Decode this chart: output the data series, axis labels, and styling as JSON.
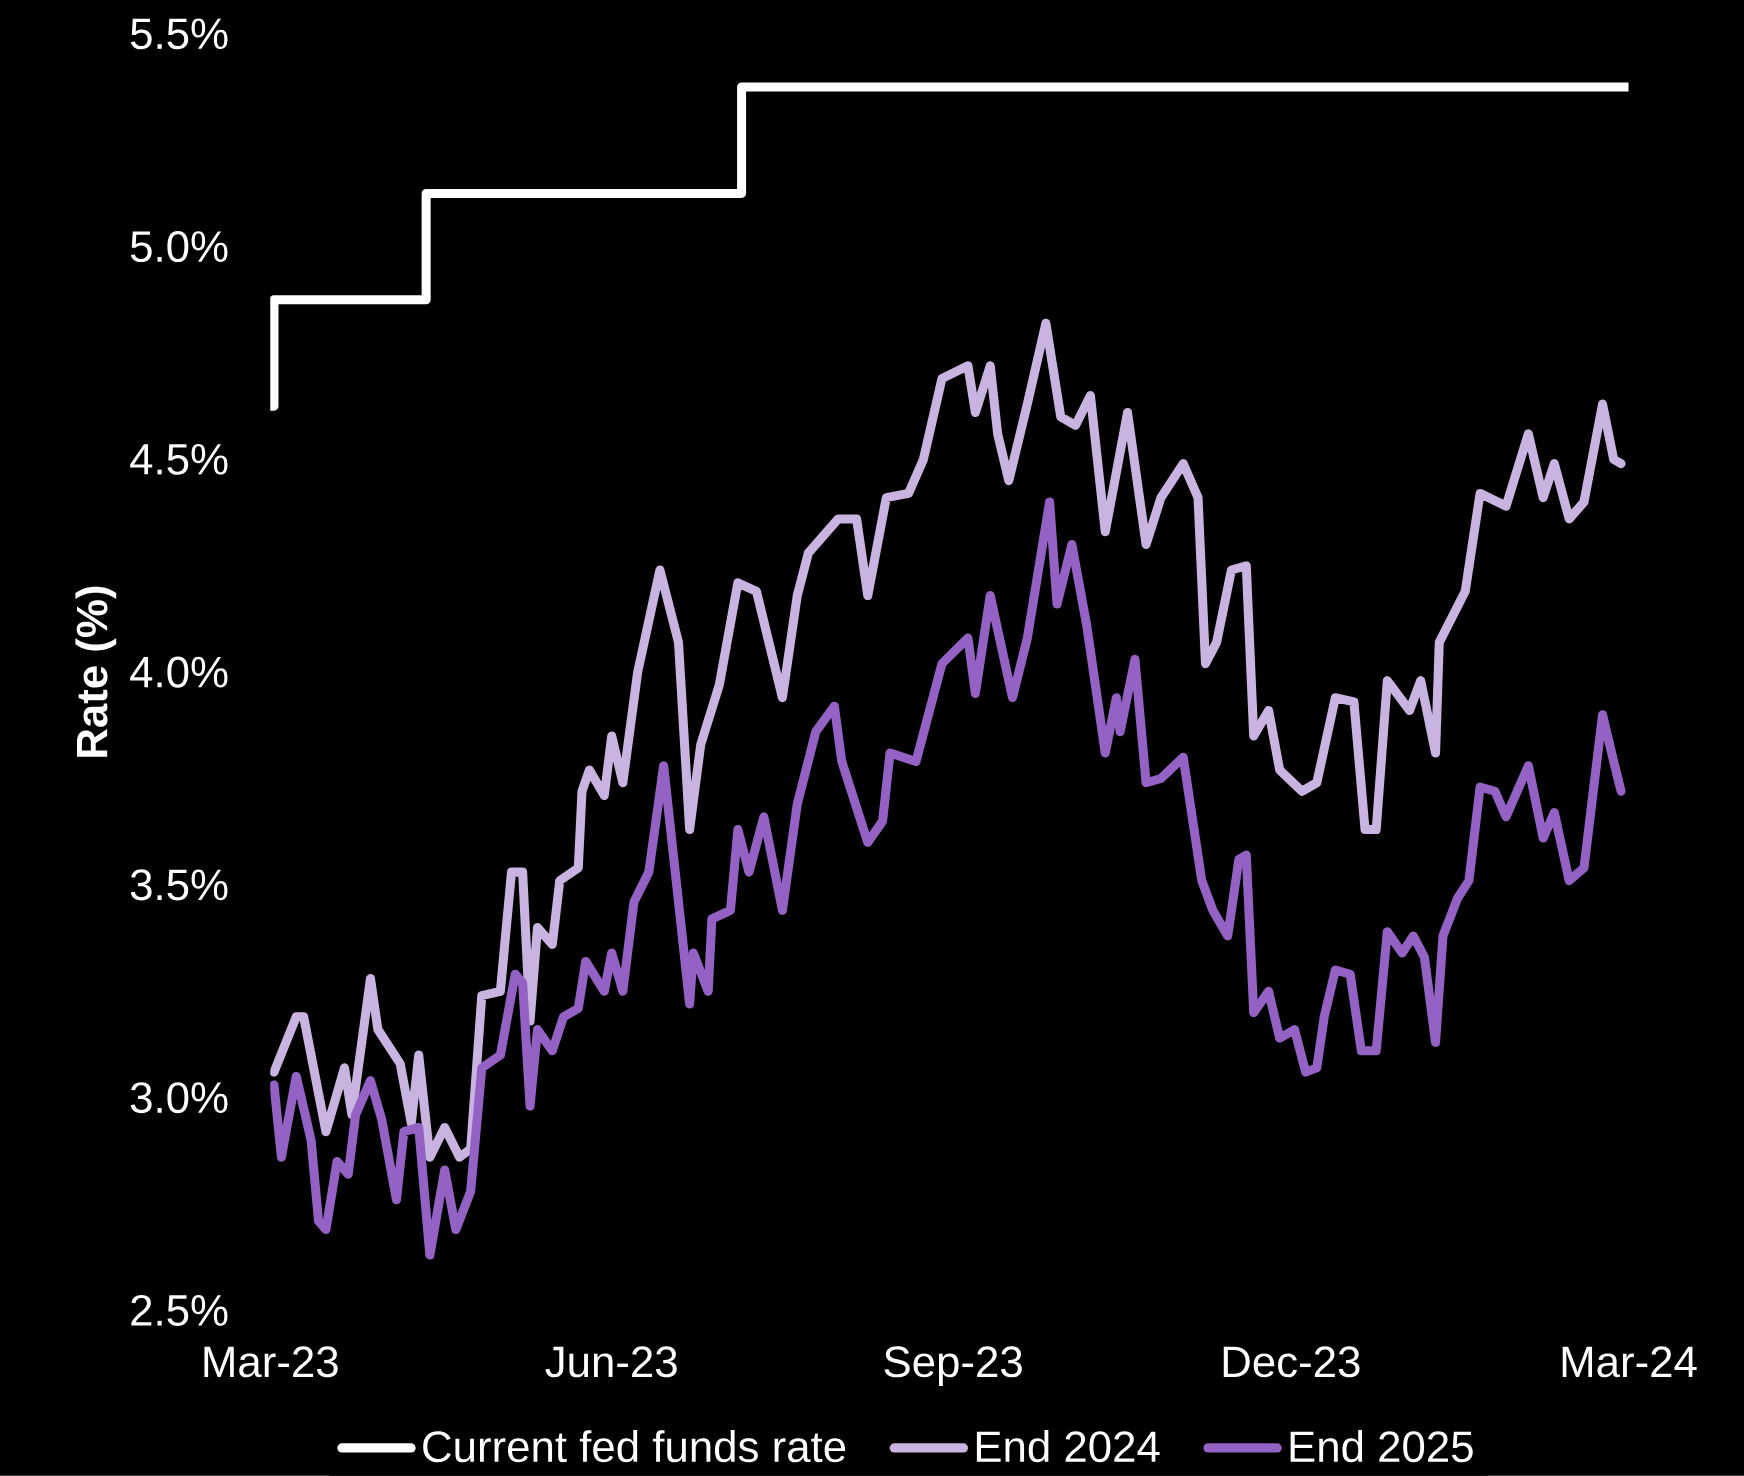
{
  "chart_data": {
    "type": "line",
    "ylabel": "Rate (%)",
    "legend": "bottom",
    "xlim": [
      "2023-03-01",
      "2024-03-01"
    ],
    "xticks": [
      {
        "value": "2023-03-01",
        "label": "Mar-23"
      },
      {
        "value": "2023-06-01",
        "label": "Jun-23"
      },
      {
        "value": "2023-09-01",
        "label": "Sep-23"
      },
      {
        "value": "2023-12-01",
        "label": "Dec-23"
      },
      {
        "value": "2024-03-01",
        "label": "Mar-24"
      }
    ],
    "ylim": [
      2.5,
      5.5
    ],
    "yticks": [
      {
        "value": 2.5,
        "label": "2.5%"
      },
      {
        "value": 3.0,
        "label": "3.0%"
      },
      {
        "value": 3.5,
        "label": "3.5%"
      },
      {
        "value": 4.0,
        "label": "4.0%"
      },
      {
        "value": 4.5,
        "label": "4.5%"
      },
      {
        "value": 5.0,
        "label": "5.0%"
      },
      {
        "value": 5.5,
        "label": "5.5%"
      }
    ],
    "series": [
      {
        "name": "Current fed funds rate",
        "type": "step",
        "color": "#ffffff",
        "x": [
          "2023-03-01",
          "2023-03-02",
          "2023-04-12",
          "2023-07-06",
          "2024-03-01"
        ],
        "values": [
          4.625,
          4.875,
          5.125,
          5.375,
          5.375
        ]
      },
      {
        "name": "End 2024",
        "color": "#c9b3e0",
        "x": [
          "2023-03-02",
          "2023-03-08",
          "2023-03-10",
          "2023-03-16",
          "2023-03-21",
          "2023-03-23",
          "2023-03-28",
          "2023-03-30",
          "2023-04-05",
          "2023-04-08",
          "2023-04-10",
          "2023-04-13",
          "2023-04-17",
          "2023-04-21",
          "2023-04-24",
          "2023-04-27",
          "2023-05-02",
          "2023-05-05",
          "2023-05-08",
          "2023-05-10",
          "2023-05-12",
          "2023-05-16",
          "2023-05-18",
          "2023-05-23",
          "2023-05-24",
          "2023-05-26",
          "2023-05-30",
          "2023-06-01",
          "2023-06-04",
          "2023-06-08",
          "2023-06-14",
          "2023-06-19",
          "2023-06-22",
          "2023-06-25",
          "2023-06-30",
          "2023-07-05",
          "2023-07-10",
          "2023-07-17",
          "2023-07-21",
          "2023-07-24",
          "2023-08-01",
          "2023-08-06",
          "2023-08-09",
          "2023-08-14",
          "2023-08-20",
          "2023-08-24",
          "2023-08-29",
          "2023-09-05",
          "2023-09-07",
          "2023-09-11",
          "2023-09-13",
          "2023-09-16",
          "2023-09-21",
          "2023-09-26",
          "2023-09-30",
          "2023-10-04",
          "2023-10-08",
          "2023-10-12",
          "2023-10-18",
          "2023-10-23",
          "2023-10-27",
          "2023-11-02",
          "2023-11-06",
          "2023-11-08",
          "2023-11-11",
          "2023-11-15",
          "2023-11-19",
          "2023-11-21",
          "2023-11-25",
          "2023-11-28",
          "2023-12-04",
          "2023-12-08",
          "2023-12-13",
          "2023-12-18",
          "2023-12-21",
          "2023-12-24",
          "2023-12-27",
          "2024-01-02",
          "2024-01-05",
          "2024-01-09",
          "2024-01-10",
          "2024-01-17",
          "2024-01-21",
          "2024-01-28",
          "2024-02-03",
          "2024-02-07",
          "2024-02-10",
          "2024-02-14",
          "2024-02-18",
          "2024-02-23",
          "2024-02-26",
          "2024-02-28"
        ],
        "values": [
          3.06,
          3.19,
          3.19,
          2.92,
          3.07,
          2.96,
          3.28,
          3.16,
          3.08,
          2.94,
          3.1,
          2.86,
          2.93,
          2.86,
          2.88,
          3.24,
          3.25,
          3.53,
          3.53,
          3.18,
          3.4,
          3.36,
          3.51,
          3.54,
          3.72,
          3.77,
          3.71,
          3.85,
          3.74,
          4.0,
          4.24,
          4.07,
          3.63,
          3.83,
          3.97,
          4.21,
          4.19,
          3.94,
          4.18,
          4.28,
          4.36,
          4.36,
          4.18,
          4.41,
          4.42,
          4.5,
          4.69,
          4.72,
          4.61,
          4.72,
          4.56,
          4.45,
          4.63,
          4.82,
          4.6,
          4.58,
          4.65,
          4.33,
          4.61,
          4.3,
          4.41,
          4.49,
          4.41,
          4.02,
          4.07,
          4.24,
          4.25,
          3.85,
          3.91,
          3.77,
          3.72,
          3.74,
          3.94,
          3.93,
          3.63,
          3.63,
          3.98,
          3.91,
          3.98,
          3.81,
          4.07,
          4.19,
          4.42,
          4.39,
          4.56,
          4.41,
          4.49,
          4.36,
          4.4,
          4.63,
          4.5,
          4.49
        ]
      },
      {
        "name": "End 2025",
        "color": "#9461c4",
        "x": [
          "2023-03-02",
          "2023-03-04",
          "2023-03-08",
          "2023-03-12",
          "2023-03-14",
          "2023-03-16",
          "2023-03-19",
          "2023-03-22",
          "2023-03-24",
          "2023-03-28",
          "2023-03-31",
          "2023-04-04",
          "2023-04-06",
          "2023-04-10",
          "2023-04-13",
          "2023-04-17",
          "2023-04-20",
          "2023-04-24",
          "2023-04-27",
          "2023-05-02",
          "2023-05-06",
          "2023-05-08",
          "2023-05-10",
          "2023-05-12",
          "2023-05-16",
          "2023-05-19",
          "2023-05-23",
          "2023-05-25",
          "2023-05-30",
          "2023-06-01",
          "2023-06-04",
          "2023-06-07",
          "2023-06-11",
          "2023-06-15",
          "2023-06-22",
          "2023-06-23",
          "2023-06-27",
          "2023-06-28",
          "2023-07-03",
          "2023-07-05",
          "2023-07-08",
          "2023-07-12",
          "2023-07-17",
          "2023-07-21",
          "2023-07-26",
          "2023-07-31",
          "2023-08-02",
          "2023-08-09",
          "2023-08-13",
          "2023-08-15",
          "2023-08-22",
          "2023-08-29",
          "2023-09-05",
          "2023-09-07",
          "2023-09-11",
          "2023-09-17",
          "2023-09-21",
          "2023-09-27",
          "2023-09-29",
          "2023-10-03",
          "2023-10-07",
          "2023-10-12",
          "2023-10-15",
          "2023-10-16",
          "2023-10-20",
          "2023-10-23",
          "2023-10-27",
          "2023-11-02",
          "2023-11-07",
          "2023-11-10",
          "2023-11-14",
          "2023-11-17",
          "2023-11-19",
          "2023-11-21",
          "2023-11-25",
          "2023-11-28",
          "2023-12-02",
          "2023-12-05",
          "2023-12-08",
          "2023-12-10",
          "2023-12-13",
          "2023-12-17",
          "2023-12-20",
          "2023-12-24",
          "2023-12-27",
          "2023-12-31",
          "2024-01-03",
          "2024-01-06",
          "2024-01-09",
          "2024-01-11",
          "2024-01-15",
          "2024-01-18",
          "2024-01-21",
          "2024-01-25",
          "2024-01-28",
          "2024-02-03",
          "2024-02-07",
          "2024-02-10",
          "2024-02-14",
          "2024-02-18",
          "2024-02-23",
          "2024-02-26",
          "2024-02-28"
        ],
        "values": [
          3.03,
          2.86,
          3.05,
          2.9,
          2.71,
          2.69,
          2.85,
          2.82,
          2.96,
          3.04,
          2.95,
          2.76,
          2.92,
          2.93,
          2.63,
          2.83,
          2.69,
          2.78,
          3.07,
          3.1,
          3.29,
          3.27,
          2.98,
          3.16,
          3.11,
          3.19,
          3.21,
          3.32,
          3.25,
          3.34,
          3.25,
          3.46,
          3.53,
          3.78,
          3.22,
          3.34,
          3.25,
          3.42,
          3.44,
          3.63,
          3.53,
          3.66,
          3.44,
          3.69,
          3.86,
          3.92,
          3.79,
          3.6,
          3.65,
          3.81,
          3.79,
          4.02,
          4.08,
          3.95,
          4.18,
          3.94,
          4.08,
          4.4,
          4.16,
          4.3,
          4.11,
          3.81,
          3.94,
          3.86,
          4.03,
          3.74,
          3.75,
          3.8,
          3.51,
          3.44,
          3.38,
          3.56,
          3.57,
          3.2,
          3.25,
          3.14,
          3.16,
          3.06,
          3.07,
          3.19,
          3.3,
          3.29,
          3.11,
          3.11,
          3.39,
          3.34,
          3.38,
          3.33,
          3.13,
          3.38,
          3.47,
          3.51,
          3.73,
          3.72,
          3.66,
          3.78,
          3.61,
          3.67,
          3.51,
          3.54,
          3.9,
          3.79,
          3.72
        ]
      }
    ]
  }
}
